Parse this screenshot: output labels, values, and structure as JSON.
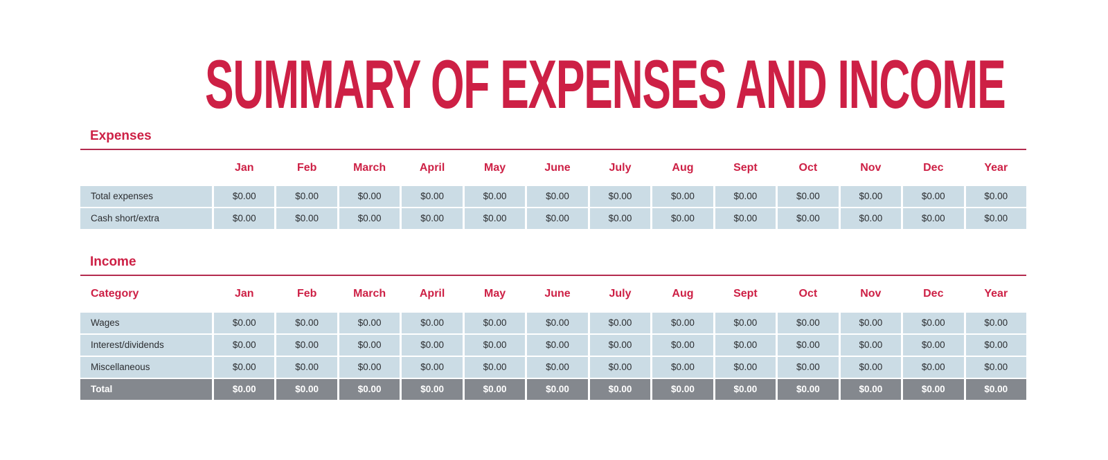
{
  "title": "SUMMARY OF EXPENSES AND INCOME",
  "colors": {
    "accent_red": "#cd2045",
    "rule_red": "#b32a4e",
    "row_blue": "#cbdce5",
    "total_gray": "#84888e",
    "cell_text": "#2b2d30"
  },
  "months": [
    "Jan",
    "Feb",
    "March",
    "April",
    "May",
    "June",
    "July",
    "Aug",
    "Sept",
    "Oct",
    "Nov",
    "Dec",
    "Year"
  ],
  "expenses": {
    "section_title": "Expenses",
    "corner_label": "",
    "rows": [
      {
        "label": "Total expenses",
        "values": [
          "$0.00",
          "$0.00",
          "$0.00",
          "$0.00",
          "$0.00",
          "$0.00",
          "$0.00",
          "$0.00",
          "$0.00",
          "$0.00",
          "$0.00",
          "$0.00",
          "$0.00"
        ]
      },
      {
        "label": "Cash short/extra",
        "values": [
          "$0.00",
          "$0.00",
          "$0.00",
          "$0.00",
          "$0.00",
          "$0.00",
          "$0.00",
          "$0.00",
          "$0.00",
          "$0.00",
          "$0.00",
          "$0.00",
          "$0.00"
        ]
      }
    ]
  },
  "income": {
    "section_title": "Income",
    "corner_label": "Category",
    "rows": [
      {
        "label": "Wages",
        "values": [
          "$0.00",
          "$0.00",
          "$0.00",
          "$0.00",
          "$0.00",
          "$0.00",
          "$0.00",
          "$0.00",
          "$0.00",
          "$0.00",
          "$0.00",
          "$0.00",
          "$0.00"
        ]
      },
      {
        "label": "Interest/dividends",
        "values": [
          "$0.00",
          "$0.00",
          "$0.00",
          "$0.00",
          "$0.00",
          "$0.00",
          "$0.00",
          "$0.00",
          "$0.00",
          "$0.00",
          "$0.00",
          "$0.00",
          "$0.00"
        ]
      },
      {
        "label": "Miscellaneous",
        "values": [
          "$0.00",
          "$0.00",
          "$0.00",
          "$0.00",
          "$0.00",
          "$0.00",
          "$0.00",
          "$0.00",
          "$0.00",
          "$0.00",
          "$0.00",
          "$0.00",
          "$0.00"
        ]
      }
    ],
    "total": {
      "label": "Total",
      "values": [
        "$0.00",
        "$0.00",
        "$0.00",
        "$0.00",
        "$0.00",
        "$0.00",
        "$0.00",
        "$0.00",
        "$0.00",
        "$0.00",
        "$0.00",
        "$0.00",
        "$0.00"
      ]
    }
  }
}
